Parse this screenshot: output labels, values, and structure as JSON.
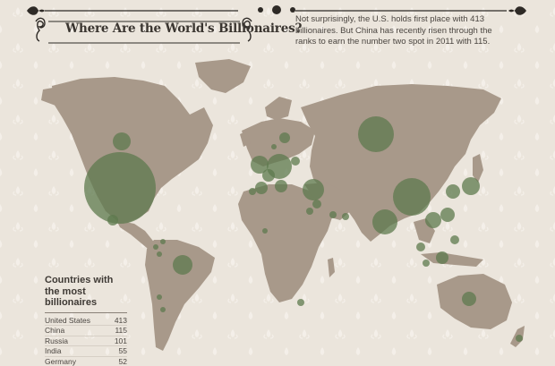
{
  "header": {
    "title": "Where Are the World's Billionaires?",
    "intro": "Not surprisingly, the U.S. holds first place with 413 billionaires. But China has recently risen through the ranks to earn the number two spot in 2011 with 115."
  },
  "legend": {
    "title": "Countries with the most billionaires",
    "rows": [
      {
        "country": "United States",
        "count": "413"
      },
      {
        "country": "China",
        "count": "115"
      },
      {
        "country": "Russia",
        "count": "101"
      },
      {
        "country": "India",
        "count": "55"
      },
      {
        "country": "Germany",
        "count": "52"
      }
    ]
  },
  "colors": {
    "background": "#ebe5dc",
    "land": "#a8998a",
    "bubble": "#5e7a4e",
    "text": "#3a3530"
  }
}
